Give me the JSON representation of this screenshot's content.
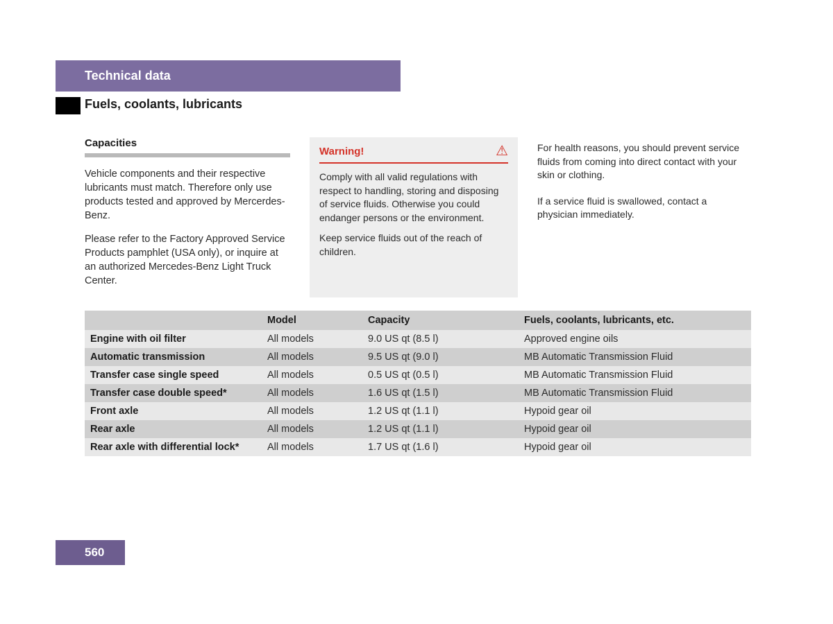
{
  "header": {
    "title": "Technical data",
    "subtitle": "Fuels, coolants, lubricants",
    "bar_color": "#7c6da0"
  },
  "capacities": {
    "heading": "Capacities",
    "para1": "Vehicle components and their respective lubricants must match. Therefore only use products tested and approved by Mercerdes-Benz.",
    "para2": "Please refer to the Factory Approved Service Products pamphlet (USA only), or inquire at an authorized Mercedes-Benz Light Truck Center."
  },
  "warning": {
    "label": "Warning!",
    "icon": "⚠",
    "text1": "Comply with all valid regulations with respect to handling, storing and disposing of service fluids. Otherwise you could endanger persons or the environment.",
    "text2": "Keep service fluids out of the reach of children.",
    "accent_color": "#d43228",
    "bg_color": "#eeeeee"
  },
  "right": {
    "text1": "For health reasons, you should prevent service fluids from coming into direct contact with your skin or clothing.",
    "text2": "If a service fluid is swallowed, contact a physician immediately."
  },
  "table": {
    "columns": [
      "",
      "Model",
      "Capacity",
      "Fuels, coolants, lubricants, etc."
    ],
    "rows": [
      [
        "Engine with oil filter",
        "All models",
        "9.0 US qt (8.5 l)",
        "Approved engine oils"
      ],
      [
        "Automatic transmission",
        "All models",
        "9.5 US qt (9.0 l)",
        "MB Automatic Transmission Fluid"
      ],
      [
        "Transfer case single speed",
        "All models",
        "0.5 US qt (0.5 l)",
        "MB Automatic Transmission Fluid"
      ],
      [
        "Transfer case double speed*",
        "All models",
        "1.6 US qt (1.5 l)",
        "MB Automatic Transmission Fluid"
      ],
      [
        "Front axle",
        "All models",
        "1.2 US qt (1.1 l)",
        "Hypoid gear oil"
      ],
      [
        "Rear axle",
        "All models",
        "1.2 US qt (1.1 l)",
        "Hypoid gear oil"
      ],
      [
        "Rear axle with differential lock*",
        "All models",
        "1.7 US qt (1.6 l)",
        "Hypoid gear oil"
      ]
    ],
    "header_bg": "#cfcfcf",
    "row_odd_bg": "#e8e8e8",
    "row_even_bg": "#cfcfcf"
  },
  "page_number": "560",
  "page_box_color": "#6d5d8f"
}
